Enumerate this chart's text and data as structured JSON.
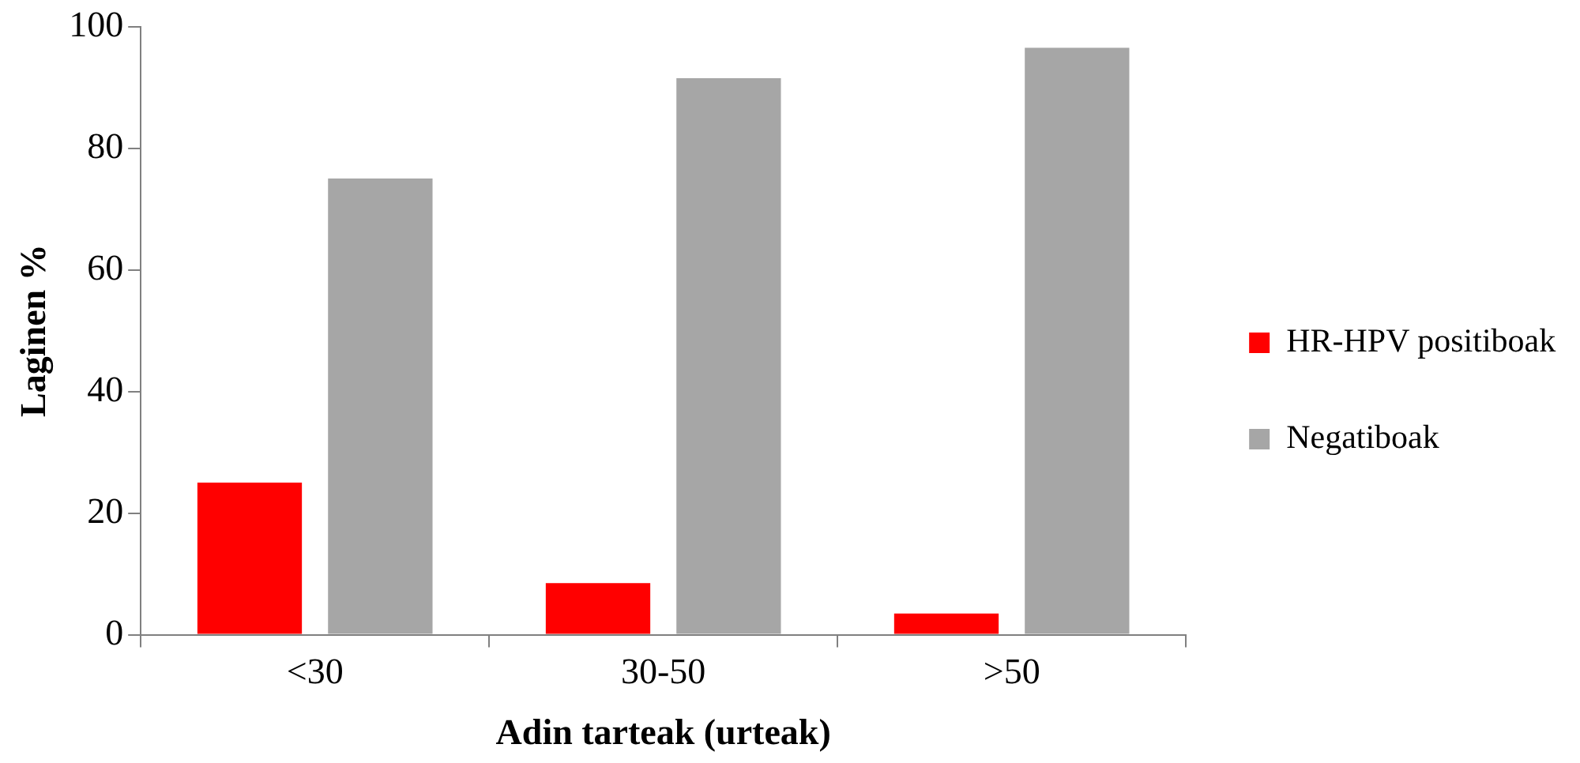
{
  "chart_data": {
    "type": "bar",
    "xlabel": "Adin tarteak (urteak)",
    "ylabel": "Laginen %",
    "categories": [
      "<30",
      "30-50",
      ">50"
    ],
    "series": [
      {
        "name": "HR-HPV positiboak",
        "color": "#ff0000",
        "values": [
          25,
          8.5,
          3.5
        ]
      },
      {
        "name": "Negatiboak",
        "color": "#a6a6a6",
        "values": [
          75,
          91.5,
          96.5
        ]
      }
    ],
    "ylim": [
      0,
      100
    ],
    "yticks": [
      0,
      20,
      40,
      60,
      80,
      100
    ],
    "grid": false,
    "legend": "right"
  }
}
